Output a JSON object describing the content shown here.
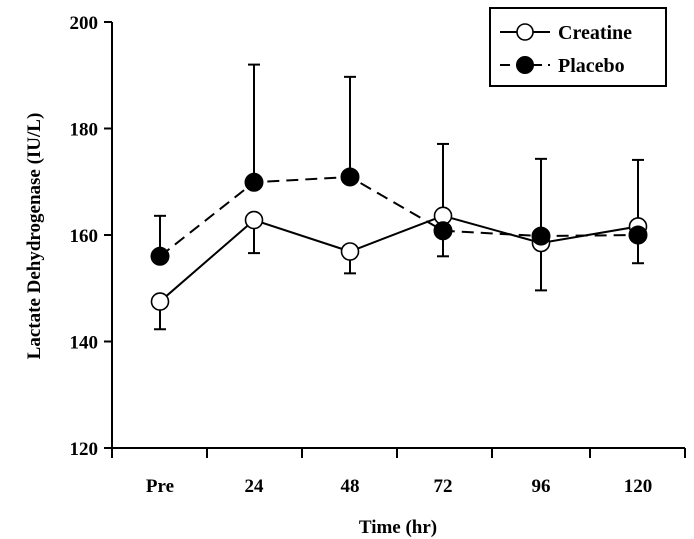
{
  "chart_data": {
    "type": "line",
    "title": "",
    "xlabel": "Time (hr)",
    "ylabel": "Lactate Dehydrogenase (IU/L)",
    "categories": [
      "Pre",
      "24",
      "48",
      "72",
      "96",
      "120"
    ],
    "ylim": [
      120,
      200
    ],
    "yticks": [
      "120",
      "140",
      "160",
      "180",
      "200"
    ],
    "grid": false,
    "legend_position": "top-right",
    "series": [
      {
        "name": "Creatine",
        "marker": "open-circle",
        "line_style": "solid",
        "values": [
          147.5,
          162.8,
          156.9,
          163.6,
          158.5,
          161.6
        ],
        "error_upper": [
          null,
          null,
          null,
          null,
          null,
          null
        ],
        "error_lower": [
          142.3,
          156.6,
          152.8,
          156.0,
          149.6,
          154.7
        ],
        "error_direction": "down",
        "color": "#ffffff"
      },
      {
        "name": "Placebo",
        "marker": "filled-circle",
        "line_style": "dashed",
        "values": [
          156.0,
          169.9,
          170.9,
          160.8,
          159.8,
          160.0
        ],
        "error_upper": [
          163.6,
          192.0,
          189.7,
          177.1,
          174.3,
          174.1
        ],
        "error_direction": "up",
        "color": "#000000"
      }
    ]
  }
}
